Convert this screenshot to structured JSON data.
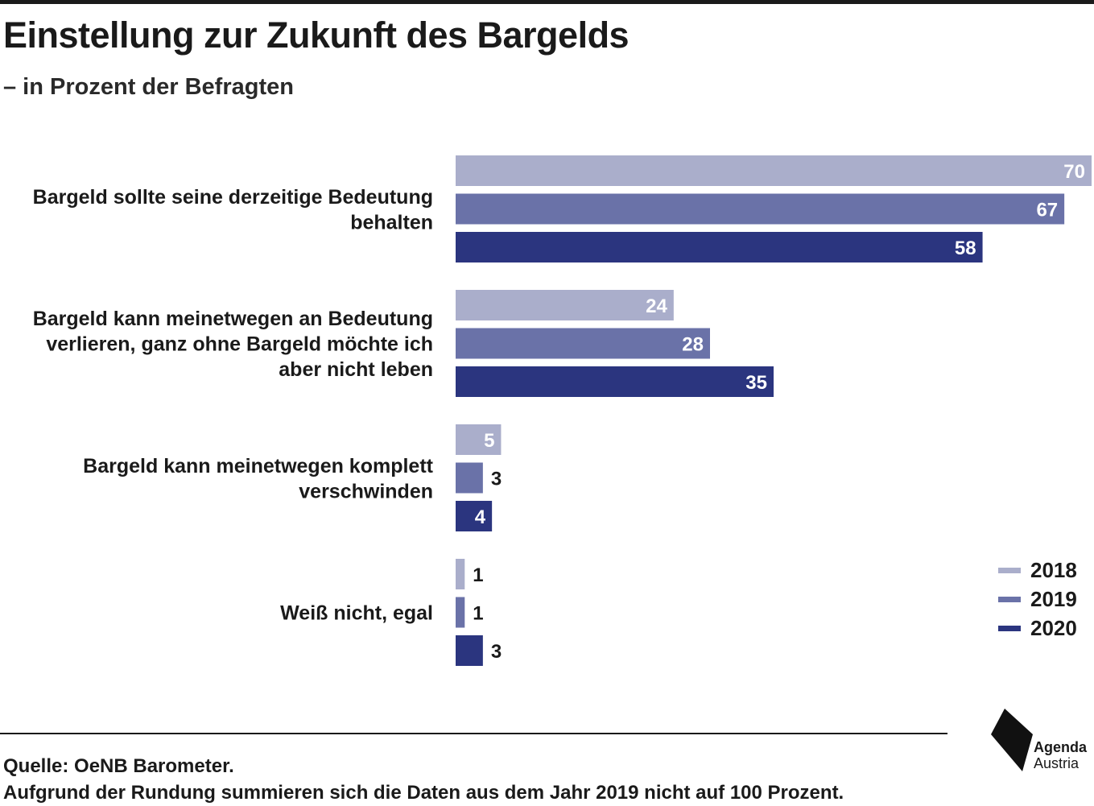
{
  "title": "Einstellung zur Zukunft des Bargelds",
  "subtitle": "– in Prozent der Befragten",
  "chart_data": {
    "type": "bar",
    "orientation": "horizontal",
    "categories": [
      [
        "Bargeld sollte seine derzeitige Bedeutung",
        "behalten"
      ],
      [
        "Bargeld kann meinetwegen an Bedeutung",
        "verlieren, ganz ohne Bargeld möchte ich",
        "aber nicht leben"
      ],
      [
        "Bargeld kann meinetwegen komplett",
        "verschwinden"
      ],
      [
        "Weiß nicht, egal"
      ]
    ],
    "series": [
      {
        "name": "2018",
        "color": "#aaaecb",
        "values": [
          70,
          24,
          5,
          1
        ]
      },
      {
        "name": "2019",
        "color": "#6a72a8",
        "values": [
          67,
          28,
          3,
          1
        ]
      },
      {
        "name": "2020",
        "color": "#2b357f",
        "values": [
          58,
          35,
          4,
          3
        ]
      }
    ],
    "xlim": [
      0,
      70
    ],
    "grid": false,
    "legend_position": "bottom-right",
    "value_labels": true
  },
  "footer": {
    "source": "Quelle: OeNB Barometer.",
    "note": "Aufgrund der Rundung summieren sich die Daten aus dem Jahr 2019 nicht auf 100 Prozent."
  },
  "logo": {
    "line1": "Agenda",
    "line2": "Austria"
  }
}
